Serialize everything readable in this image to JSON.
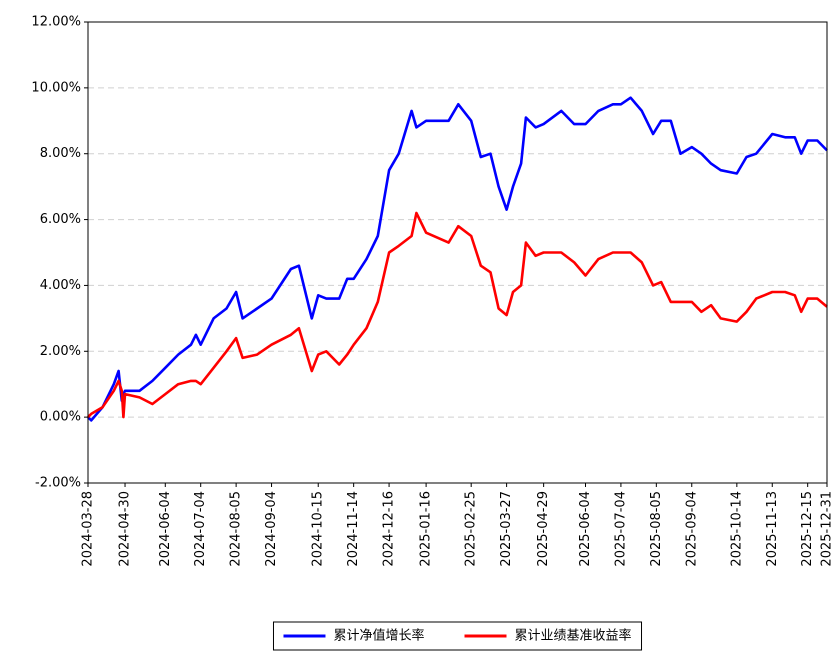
{
  "chart_data": {
    "type": "line",
    "x": [
      "2024-03-28",
      "2024-04-01",
      "2024-04-10",
      "2024-04-19",
      "2024-04-24",
      "2024-04-26",
      "2024-04-29",
      "2024-04-30",
      "2024-05-13",
      "2024-05-23",
      "2024-06-04",
      "2024-06-14",
      "2024-06-26",
      "2024-07-01",
      "2024-07-04",
      "2024-07-16",
      "2024-07-26",
      "2024-08-05",
      "2024-08-09",
      "2024-08-22",
      "2024-09-04",
      "2024-09-20",
      "2024-09-27",
      "2024-10-09",
      "2024-10-15",
      "2024-10-22",
      "2024-11-01",
      "2024-11-08",
      "2024-11-14",
      "2024-11-26",
      "2024-12-05",
      "2024-12-16",
      "2024-12-24",
      "2025-01-03",
      "2025-01-08",
      "2025-01-16",
      "2025-02-05",
      "2025-02-13",
      "2025-02-25",
      "2025-03-05",
      "2025-03-13",
      "2025-03-20",
      "2025-03-27",
      "2025-04-02",
      "2025-04-09",
      "2025-04-14",
      "2025-04-22",
      "2025-04-29",
      "2025-05-14",
      "2025-05-26",
      "2025-06-04",
      "2025-06-16",
      "2025-06-27",
      "2025-07-04",
      "2025-07-14",
      "2025-07-23",
      "2025-08-01",
      "2025-08-08",
      "2025-08-18",
      "2025-08-26",
      "2025-09-04",
      "2025-09-12",
      "2025-09-22",
      "2025-09-30",
      "2025-10-14",
      "2025-10-22",
      "2025-10-30",
      "2025-11-13",
      "2025-11-25",
      "2025-12-03",
      "2025-12-09",
      "2025-12-15",
      "2025-12-23",
      "2025-12-31"
    ],
    "series": [
      {
        "name": "累计净值增长率",
        "color": "#0000ff",
        "values": [
          0,
          -0.1,
          0.3,
          1.0,
          1.4,
          0.5,
          0.7,
          0.8,
          0.8,
          1.1,
          1.5,
          1.9,
          2.2,
          2.5,
          2.2,
          3.0,
          3.3,
          3.8,
          3.0,
          3.3,
          3.6,
          4.5,
          4.6,
          3.0,
          3.7,
          3.6,
          3.6,
          4.2,
          4.2,
          4.8,
          5.5,
          7.5,
          8.0,
          9.3,
          8.8,
          9.0,
          9.0,
          9.5,
          9.0,
          7.9,
          8.0,
          7.0,
          6.3,
          7.0,
          7.7,
          9.1,
          8.8,
          8.9,
          9.3,
          8.9,
          8.9,
          9.3,
          9.5,
          9.5,
          9.7,
          9.3,
          8.6,
          9.0,
          9.0,
          8.0,
          8.2,
          8.0,
          7.7,
          7.5,
          7.4,
          7.9,
          8.0,
          8.6,
          8.5,
          8.5,
          8.0,
          8.4,
          8.4,
          8.1
        ]
      },
      {
        "name": "累计业绩基准收益率",
        "color": "#ff0000",
        "values": [
          0,
          0.1,
          0.3,
          0.8,
          1.1,
          0.8,
          0.0,
          0.7,
          0.6,
          0.4,
          0.7,
          1.0,
          1.1,
          1.1,
          1.0,
          1.5,
          2.0,
          2.4,
          1.8,
          1.9,
          2.2,
          2.5,
          2.7,
          1.4,
          1.9,
          2.0,
          1.6,
          1.9,
          2.2,
          2.7,
          3.5,
          5.0,
          5.2,
          5.5,
          6.2,
          5.6,
          5.3,
          5.8,
          5.5,
          4.6,
          4.4,
          3.3,
          3.1,
          3.8,
          4.0,
          5.3,
          4.9,
          5.0,
          5.0,
          4.7,
          4.3,
          4.8,
          5.0,
          5.0,
          5.0,
          4.7,
          4.0,
          4.1,
          3.5,
          3.5,
          3.5,
          3.2,
          3.4,
          3.0,
          2.9,
          3.2,
          3.6,
          3.8,
          3.8,
          3.7,
          3.2,
          3.6,
          3.6,
          3.35
        ]
      }
    ],
    "xlim": [
      "2024-03-28",
      "2025-12-31"
    ],
    "xticks": [
      "2024-03-28",
      "2024-04-30",
      "2024-06-04",
      "2024-07-04",
      "2024-08-05",
      "2024-09-04",
      "2024-10-15",
      "2024-11-14",
      "2024-12-16",
      "2025-01-16",
      "2025-02-25",
      "2025-03-27",
      "2025-04-29",
      "2025-06-04",
      "2025-07-04",
      "2025-08-05",
      "2025-09-04",
      "2025-10-14",
      "2025-11-13",
      "2025-12-15",
      "2025-12-31"
    ],
    "ylim": [
      -2,
      12
    ],
    "yticks": [
      {
        "value": -2,
        "label": "-2.00%"
      },
      {
        "value": 0,
        "label": "0.00%"
      },
      {
        "value": 2,
        "label": "2.00%"
      },
      {
        "value": 4,
        "label": "4.00%"
      },
      {
        "value": 6,
        "label": "6.00%"
      },
      {
        "value": 8,
        "label": "8.00%"
      },
      {
        "value": 10,
        "label": "10.00%"
      },
      {
        "value": 12,
        "label": "12.00%"
      }
    ],
    "grid": "y",
    "legend": "bottom"
  }
}
